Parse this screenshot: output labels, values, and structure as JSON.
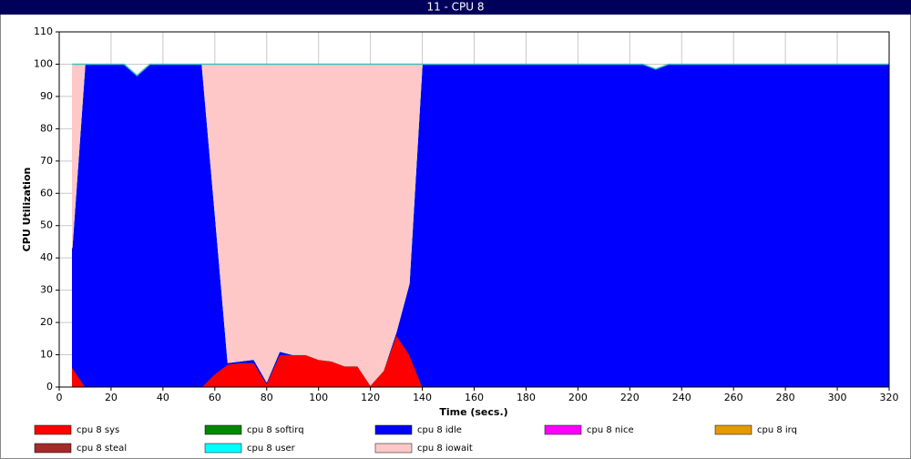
{
  "chart_data": {
    "type": "stacked-area",
    "title": "11 - CPU 8",
    "xlabel": "Time (secs.)",
    "ylabel": "CPU Utilization",
    "xlim": [
      0,
      320
    ],
    "ylim": [
      0,
      110
    ],
    "xticks": [
      0,
      20,
      40,
      60,
      80,
      100,
      120,
      140,
      160,
      180,
      200,
      220,
      240,
      260,
      280,
      300,
      320
    ],
    "yticks": [
      0,
      10,
      20,
      30,
      40,
      50,
      60,
      70,
      80,
      90,
      100,
      110
    ],
    "grid": true,
    "x": [
      5,
      10,
      15,
      20,
      25,
      30,
      35,
      40,
      45,
      50,
      55,
      60,
      65,
      70,
      75,
      80,
      85,
      90,
      95,
      100,
      105,
      110,
      115,
      120,
      125,
      130,
      135,
      140,
      145,
      150,
      155,
      160,
      165,
      170,
      175,
      180,
      185,
      190,
      195,
      200,
      205,
      210,
      215,
      220,
      225,
      230,
      235,
      240,
      245,
      250,
      255,
      260,
      265,
      270,
      275,
      280,
      285,
      290,
      295,
      300,
      305,
      310,
      315,
      320
    ],
    "series": [
      {
        "name": "cpu 8 sys",
        "color": "#ff0000",
        "values": [
          6,
          0,
          0,
          0,
          0,
          0,
          0,
          0,
          0,
          0,
          0,
          4,
          7,
          7.5,
          7.5,
          1,
          10,
          10,
          10,
          8.5,
          8,
          6.5,
          6.5,
          0.5,
          5,
          16,
          10,
          0,
          0,
          0,
          0,
          0,
          0,
          0,
          0,
          0,
          0,
          0,
          0,
          0,
          0,
          0,
          0,
          0,
          0,
          0,
          0,
          0,
          0,
          0,
          0,
          0,
          0,
          0,
          0,
          0,
          0,
          0,
          0,
          0,
          0,
          0,
          0,
          0
        ]
      },
      {
        "name": "cpu 8 softirq",
        "color": "#008800",
        "values": [
          0,
          0,
          0,
          0,
          0,
          0,
          0,
          0,
          0,
          0,
          0,
          0,
          0,
          0,
          0,
          0,
          0,
          0,
          0,
          0,
          0,
          0,
          0,
          0,
          0,
          0,
          0,
          0,
          0,
          0,
          0,
          0,
          0,
          0,
          0,
          0,
          0,
          0,
          0,
          0,
          0,
          0,
          0,
          0,
          0,
          0,
          0,
          0,
          0,
          0,
          0,
          0,
          0,
          0,
          0,
          0,
          0,
          0,
          0,
          0,
          0,
          0,
          0,
          0
        ]
      },
      {
        "name": "cpu 8 idle",
        "color": "#0000ff",
        "values": [
          37,
          100,
          100,
          100,
          100,
          96.5,
          100,
          100,
          100,
          100,
          100,
          50,
          0.5,
          0.5,
          1,
          0.5,
          1,
          0,
          0,
          0,
          0,
          0,
          0,
          0,
          0,
          1,
          22,
          100,
          100,
          100,
          100,
          100,
          100,
          100,
          100,
          100,
          100,
          100,
          100,
          100,
          100,
          100,
          100,
          100,
          100,
          98.5,
          100,
          100,
          100,
          100,
          100,
          100,
          100,
          100,
          100,
          100,
          100,
          100,
          100,
          100,
          100,
          100,
          100,
          100
        ]
      },
      {
        "name": "cpu 8 nice",
        "color": "#ff00ff",
        "values": [
          0,
          0,
          0,
          0,
          0,
          0,
          0,
          0,
          0,
          0,
          0,
          0,
          0,
          0,
          0,
          0,
          0,
          0,
          0,
          0,
          0,
          0,
          0,
          0,
          0,
          0,
          0,
          0,
          0,
          0,
          0,
          0,
          0,
          0,
          0,
          0,
          0,
          0,
          0,
          0,
          0,
          0,
          0,
          0,
          0,
          0,
          0,
          0,
          0,
          0,
          0,
          0,
          0,
          0,
          0,
          0,
          0,
          0,
          0,
          0,
          0,
          0,
          0,
          0
        ]
      },
      {
        "name": "cpu 8 irq",
        "color": "#e39b00",
        "values": [
          0,
          0,
          0,
          0,
          0,
          0,
          0,
          0,
          0,
          0,
          0,
          0,
          0,
          0,
          0,
          0,
          0,
          0,
          0,
          0,
          0,
          0,
          0,
          0,
          0,
          0,
          0,
          0,
          0,
          0,
          0,
          0,
          0,
          0,
          0,
          0,
          0,
          0,
          0,
          0,
          0,
          0,
          0,
          0,
          0,
          0,
          0,
          0,
          0,
          0,
          0,
          0,
          0,
          0,
          0,
          0,
          0,
          0,
          0,
          0,
          0,
          0,
          0,
          0
        ]
      },
      {
        "name": "cpu 8 steal",
        "color": "#a52a2a",
        "values": [
          0,
          0,
          0,
          0,
          0,
          0,
          0,
          0,
          0,
          0,
          0,
          0,
          0,
          0,
          0,
          0,
          0,
          0,
          0,
          0,
          0,
          0,
          0,
          0,
          0,
          0,
          0,
          0,
          0,
          0,
          0,
          0,
          0,
          0,
          0,
          0,
          0,
          0,
          0,
          0,
          0,
          0,
          0,
          0,
          0,
          0,
          0,
          0,
          0,
          0,
          0,
          0,
          0,
          0,
          0,
          0,
          0,
          0,
          0,
          0,
          0,
          0,
          0,
          0
        ]
      },
      {
        "name": "cpu 8 user",
        "color": "#00ffff",
        "values": [
          0,
          0,
          0,
          0,
          0,
          0,
          0,
          0,
          0,
          0,
          0,
          0,
          0,
          0,
          0,
          0,
          0,
          0,
          0,
          0,
          0,
          0,
          0,
          0,
          0,
          0,
          0,
          0,
          0,
          0,
          0,
          0,
          0,
          0,
          0,
          0,
          0,
          0,
          0,
          0,
          0,
          0,
          0,
          0,
          0,
          0,
          0,
          0,
          0,
          0,
          0,
          0,
          0,
          0,
          0,
          0,
          0,
          0,
          0,
          0,
          0,
          0,
          0,
          0
        ]
      },
      {
        "name": "cpu 8 iowait",
        "color": "#ffc8c8",
        "values": [
          57,
          0,
          0,
          0,
          0,
          0,
          0,
          0,
          0,
          0,
          0,
          46,
          92.5,
          92,
          91.5,
          98.5,
          89,
          90,
          90,
          91.5,
          92,
          93.5,
          93.5,
          99.5,
          95,
          83,
          68,
          0,
          0,
          0,
          0,
          0,
          0,
          0,
          0,
          0,
          0,
          0,
          0,
          0,
          0,
          0,
          0,
          0,
          0,
          0,
          0,
          0,
          0,
          0,
          0,
          0,
          0,
          0,
          0,
          0,
          0,
          0,
          0,
          0,
          0,
          0,
          0,
          0
        ]
      }
    ]
  }
}
